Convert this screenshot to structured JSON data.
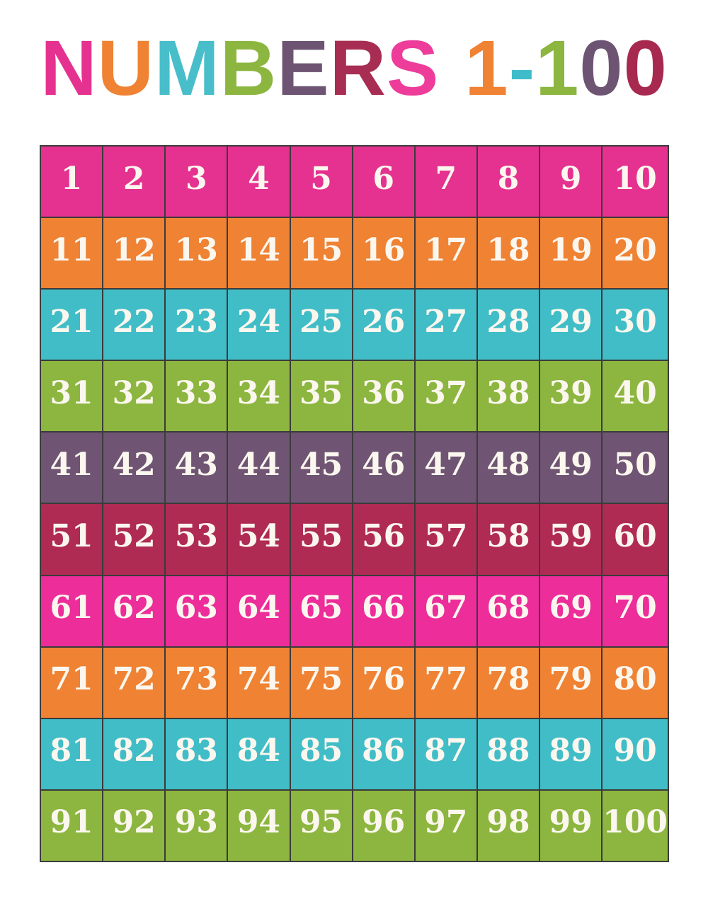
{
  "title": {
    "text": "NUMBERS 1-100",
    "letters": [
      {
        "char": "N",
        "color": "#E5318F"
      },
      {
        "char": "U",
        "color": "#EF8233"
      },
      {
        "char": "M",
        "color": "#47BECA"
      },
      {
        "char": "B",
        "color": "#8CB63F"
      },
      {
        "char": "E",
        "color": "#6E5473"
      },
      {
        "char": "R",
        "color": "#A72D52"
      },
      {
        "char": "S",
        "color": "#ED3C99"
      },
      {
        "char": " ",
        "color": ""
      },
      {
        "char": "1",
        "color": "#EF8233"
      },
      {
        "char": "-",
        "color": "#3EBCC9"
      },
      {
        "char": "1",
        "color": "#8CB63F"
      },
      {
        "char": "0",
        "color": "#6E5473"
      },
      {
        "char": "0",
        "color": "#A8294F"
      }
    ]
  },
  "grid": {
    "line_color": "#3B3B3B",
    "number_color": "#FBF7EF",
    "rows": [
      {
        "color_name": "pink",
        "color": "#E5318F",
        "numbers": [
          1,
          2,
          3,
          4,
          5,
          6,
          7,
          8,
          9,
          10
        ]
      },
      {
        "color_name": "orange",
        "color": "#EF8233",
        "numbers": [
          11,
          12,
          13,
          14,
          15,
          16,
          17,
          18,
          19,
          20
        ]
      },
      {
        "color_name": "teal",
        "color": "#41BDC7",
        "numbers": [
          21,
          22,
          23,
          24,
          25,
          26,
          27,
          28,
          29,
          30
        ]
      },
      {
        "color_name": "green",
        "color": "#8CB63F",
        "numbers": [
          31,
          32,
          33,
          34,
          35,
          36,
          37,
          38,
          39,
          40
        ]
      },
      {
        "color_name": "purple",
        "color": "#6F5573",
        "numbers": [
          41,
          42,
          43,
          44,
          45,
          46,
          47,
          48,
          49,
          50
        ]
      },
      {
        "color_name": "maroon",
        "color": "#AF2B54",
        "numbers": [
          51,
          52,
          53,
          54,
          55,
          56,
          57,
          58,
          59,
          60
        ]
      },
      {
        "color_name": "pink",
        "color": "#EC2D9A",
        "numbers": [
          61,
          62,
          63,
          64,
          65,
          66,
          67,
          68,
          69,
          70
        ]
      },
      {
        "color_name": "orange",
        "color": "#EF8233",
        "numbers": [
          71,
          72,
          73,
          74,
          75,
          76,
          77,
          78,
          79,
          80
        ]
      },
      {
        "color_name": "teal",
        "color": "#41BDC7",
        "numbers": [
          81,
          82,
          83,
          84,
          85,
          86,
          87,
          88,
          89,
          90
        ]
      },
      {
        "color_name": "green",
        "color": "#8CB63F",
        "numbers": [
          91,
          92,
          93,
          94,
          95,
          96,
          97,
          98,
          99,
          100
        ]
      }
    ]
  }
}
